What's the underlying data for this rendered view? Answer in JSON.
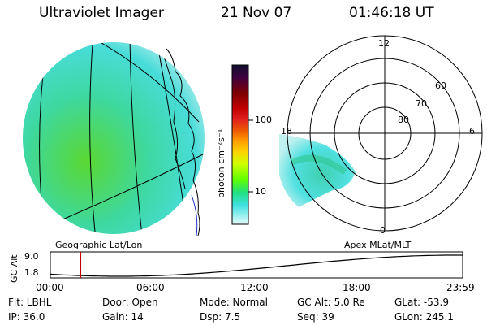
{
  "header": {
    "title": "Ultraviolet Imager",
    "date": "21 Nov 07",
    "time": "01:46:18 UT"
  },
  "colorbar": {
    "unit_label": "photon cm⁻²s⁻¹",
    "ticks": [
      "100",
      "10"
    ],
    "colors": [
      "#101030",
      "#400040",
      "#800000",
      "#c00000",
      "#e02020",
      "#f06000",
      "#ffa000",
      "#ffd000",
      "#d0ff00",
      "#60ff00",
      "#20e080",
      "#40e0e0",
      "#a0f0f0",
      "#e8f8f8"
    ]
  },
  "left_panel": {
    "caption": "Geographic Lat/Lon"
  },
  "polar_plot": {
    "caption": "Apex MLat/MLT",
    "mlt_labels": {
      "top": "12",
      "left": "18",
      "right": "6",
      "bottom": "0"
    },
    "lat_labels": [
      "60",
      "70",
      "80"
    ]
  },
  "altitude_plot": {
    "ylabel": "GC Alt",
    "yticks": [
      "9.0",
      "1.8"
    ],
    "xticks": [
      "00:00",
      "06:00",
      "12:00",
      "18:00",
      "23:59"
    ],
    "y_range": [
      1.8,
      9.0
    ],
    "current_time_hours": 1.77
  },
  "info": {
    "flt": "Flt: LBHL",
    "ip": "IP: 36.0",
    "door": "Door: Open",
    "gain": "Gain: 14",
    "mode": "Mode: Normal",
    "dsp": "Dsp:    7.5",
    "gcalt": "GC Alt: 5.0 Re",
    "seq": "Seq: 39",
    "glat": "GLat: -53.9",
    "glon": "GLon: 245.1"
  }
}
